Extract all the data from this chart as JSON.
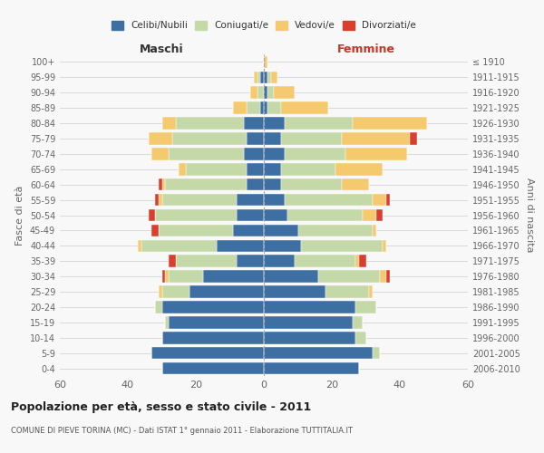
{
  "age_groups": [
    "0-4",
    "5-9",
    "10-14",
    "15-19",
    "20-24",
    "25-29",
    "30-34",
    "35-39",
    "40-44",
    "45-49",
    "50-54",
    "55-59",
    "60-64",
    "65-69",
    "70-74",
    "75-79",
    "80-84",
    "85-89",
    "90-94",
    "95-99",
    "100+"
  ],
  "birth_years": [
    "2006-2010",
    "2001-2005",
    "1996-2000",
    "1991-1995",
    "1986-1990",
    "1981-1985",
    "1976-1980",
    "1971-1975",
    "1966-1970",
    "1961-1965",
    "1956-1960",
    "1951-1955",
    "1946-1950",
    "1941-1945",
    "1936-1940",
    "1931-1935",
    "1926-1930",
    "1921-1925",
    "1916-1920",
    "1911-1915",
    "≤ 1910"
  ],
  "male": {
    "celibe": [
      30,
      33,
      30,
      28,
      30,
      22,
      18,
      8,
      14,
      9,
      8,
      8,
      5,
      5,
      6,
      5,
      6,
      1,
      0,
      1,
      0
    ],
    "coniugato": [
      0,
      0,
      0,
      1,
      2,
      8,
      10,
      18,
      22,
      22,
      24,
      22,
      24,
      18,
      22,
      22,
      20,
      4,
      2,
      1,
      0
    ],
    "vedovo": [
      0,
      0,
      0,
      0,
      0,
      1,
      1,
      0,
      1,
      0,
      0,
      1,
      1,
      2,
      5,
      7,
      4,
      4,
      2,
      1,
      0
    ],
    "divorziato": [
      0,
      0,
      0,
      0,
      0,
      0,
      1,
      2,
      0,
      2,
      2,
      1,
      1,
      0,
      0,
      0,
      0,
      0,
      0,
      0,
      0
    ]
  },
  "female": {
    "nubile": [
      28,
      32,
      27,
      26,
      27,
      18,
      16,
      9,
      11,
      10,
      7,
      6,
      5,
      5,
      6,
      5,
      6,
      1,
      1,
      1,
      0
    ],
    "coniugata": [
      0,
      2,
      3,
      3,
      6,
      13,
      18,
      18,
      24,
      22,
      22,
      26,
      18,
      16,
      18,
      18,
      20,
      4,
      2,
      1,
      0
    ],
    "vedova": [
      0,
      0,
      0,
      0,
      0,
      1,
      2,
      1,
      1,
      1,
      4,
      4,
      8,
      14,
      18,
      20,
      22,
      14,
      6,
      2,
      1
    ],
    "divorziata": [
      0,
      0,
      0,
      0,
      0,
      0,
      1,
      2,
      0,
      0,
      2,
      1,
      0,
      0,
      0,
      2,
      0,
      0,
      0,
      0,
      0
    ]
  },
  "colors": {
    "celibe": "#3d6fa3",
    "coniugato": "#c5d9a8",
    "vedovo": "#f5c96e",
    "divorziato": "#d93f2e"
  },
  "xlim": 60,
  "title": "Popolazione per età, sesso e stato civile - 2011",
  "subtitle": "COMUNE DI PIEVE TORINA (MC) - Dati ISTAT 1° gennaio 2011 - Elaborazione TUTTITALIA.IT",
  "ylabel_left": "Fasce di età",
  "ylabel_right": "Anni di nascita",
  "xlabel_left": "Maschi",
  "xlabel_right": "Femmine",
  "legend_labels": [
    "Celibi/Nubili",
    "Coniugati/e",
    "Vedovi/e",
    "Divorziati/e"
  ],
  "bg_color": "#f8f8f8",
  "grid_color": "#cccccc",
  "axis_label_color": "#666666"
}
